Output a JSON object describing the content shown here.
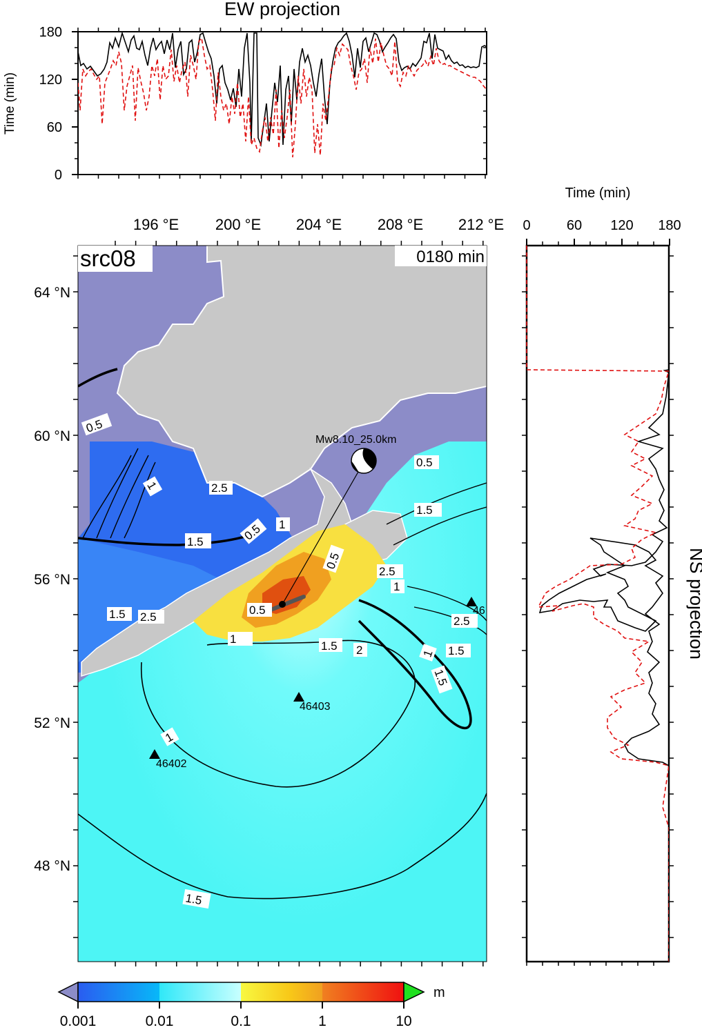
{
  "ew_panel": {
    "title": "EW projection",
    "ylabel": "Time (min)",
    "yticks": [
      "0",
      "60",
      "120",
      "180"
    ]
  },
  "ns_panel": {
    "title": "NS projection",
    "xlabel": "Time (min)",
    "xticks": [
      "0",
      "60",
      "120",
      "180"
    ]
  },
  "map": {
    "source_label": "src08",
    "time_label": "0180 min",
    "lon_ticks": [
      "196 °E",
      "200 °E",
      "204 °E",
      "208 °E",
      "212 °E"
    ],
    "lat_ticks": [
      "64 °N",
      "60 °N",
      "56 °N",
      "52 °N",
      "48 °N"
    ],
    "event_label": "Mw8.10_25.0km",
    "stations": [
      {
        "id": "46403"
      },
      {
        "id": "46402"
      },
      {
        "id": "46"
      }
    ],
    "contour_labels": [
      "0.5",
      "1",
      "1.5",
      "2.5",
      "0.5",
      "1",
      "1.5",
      "2.5",
      "0.5",
      "1",
      "1.5",
      "2",
      "2.5",
      "1",
      "1.5",
      "2.5",
      "1.5",
      "1",
      "0.5",
      "1.5",
      "0.5",
      "1",
      "1.5"
    ],
    "colors": {
      "land": "#c8c8c8",
      "ocean_low": "#4dfbfb",
      "amp_001": "#1e64f0",
      "amp_high": "#f08c1e",
      "amp_peak": "#e05010",
      "below_range": "#8c8cc8"
    }
  },
  "colorbar": {
    "unit": "m",
    "tick_labels": [
      "0.001",
      "0.01",
      "0.1",
      "1",
      "10"
    ]
  }
}
